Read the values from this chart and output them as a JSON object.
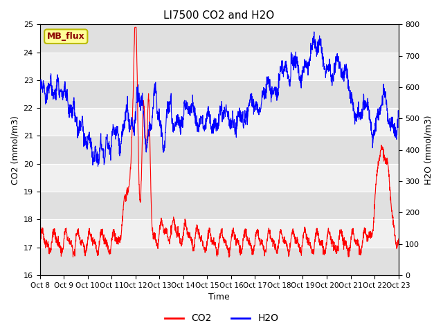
{
  "title": "LI7500 CO2 and H2O",
  "xlabel": "Time",
  "ylabel_left": "CO2 (mmol/m3)",
  "ylabel_right": "H2O (mmol/m3)",
  "ylim_left": [
    16.0,
    25.0
  ],
  "ylim_right": [
    0,
    800
  ],
  "yticks_left": [
    16.0,
    17.0,
    18.0,
    19.0,
    20.0,
    21.0,
    22.0,
    23.0,
    24.0,
    25.0
  ],
  "yticks_right": [
    0,
    100,
    200,
    300,
    400,
    500,
    600,
    700,
    800
  ],
  "xtick_labels": [
    "Oct 8",
    "Oct 9",
    "Oct 10",
    "Oct 11",
    "Oct 12",
    "Oct 13",
    "Oct 14",
    "Oct 15",
    "Oct 16",
    "Oct 17",
    "Oct 18",
    "Oct 19",
    "Oct 20",
    "Oct 21",
    "Oct 22",
    "Oct 23"
  ],
  "co2_color": "#FF0000",
  "h2o_color": "#0000FF",
  "annotation_text": "MB_flux",
  "annotation_bg": "#FFFF99",
  "annotation_border": "#BBBB00",
  "band_colors": [
    "#E0E0E0",
    "#F0F0F0"
  ],
  "band_ranges": [
    [
      16.0,
      17.0
    ],
    [
      17.0,
      18.0
    ],
    [
      18.0,
      19.0
    ],
    [
      19.0,
      20.0
    ],
    [
      20.0,
      21.0
    ],
    [
      21.0,
      22.0
    ],
    [
      22.0,
      23.0
    ],
    [
      23.0,
      24.0
    ],
    [
      24.0,
      25.0
    ]
  ],
  "line_width": 0.8
}
